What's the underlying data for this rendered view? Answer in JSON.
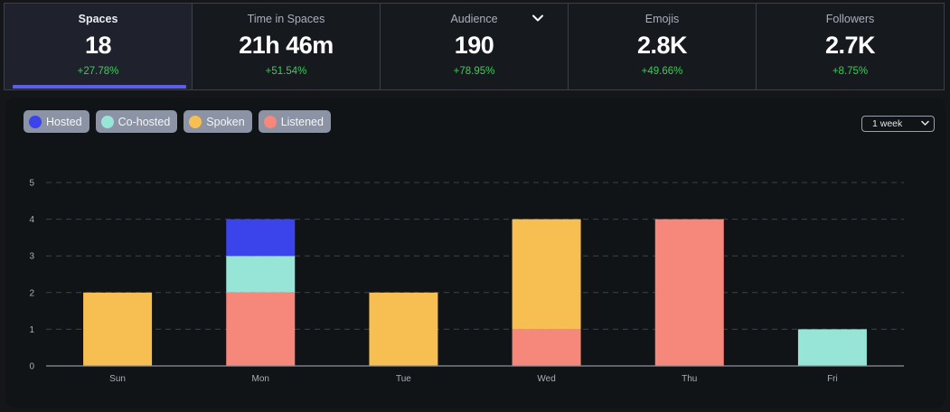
{
  "tabs": [
    {
      "label": "Spaces",
      "value": "18",
      "delta": "+27.78%",
      "active": true
    },
    {
      "label": "Time in Spaces",
      "value": "21h 46m",
      "delta": "+51.54%"
    },
    {
      "label": "Audience",
      "value": "190",
      "delta": "+78.95%",
      "dropdown": true
    },
    {
      "label": "Emojis",
      "value": "2.8K",
      "delta": "+49.66%"
    },
    {
      "label": "Followers",
      "value": "2.7K",
      "delta": "+8.75%"
    }
  ],
  "legend": [
    {
      "label": "Hosted",
      "color": "#3b43ea"
    },
    {
      "label": "Co-hosted",
      "color": "#97e5d7"
    },
    {
      "label": "Spoken",
      "color": "#f7bf52"
    },
    {
      "label": "Listened",
      "color": "#f5877b"
    }
  ],
  "range_select": {
    "value": "1 week"
  },
  "chart_data": {
    "type": "bar",
    "stacked": true,
    "categories": [
      "Sun",
      "Mon",
      "Tue",
      "Wed",
      "Thu",
      "Fri"
    ],
    "series": [
      {
        "name": "Listened",
        "color": "#f5877b",
        "values": [
          0,
          2,
          0,
          1,
          4,
          0
        ]
      },
      {
        "name": "Spoken",
        "color": "#f7bf52",
        "values": [
          2,
          0,
          2,
          3,
          0,
          0
        ]
      },
      {
        "name": "Co-hosted",
        "color": "#97e5d7",
        "values": [
          0,
          1,
          0,
          0,
          0,
          1
        ]
      },
      {
        "name": "Hosted",
        "color": "#3b43ea",
        "values": [
          0,
          1,
          0,
          0,
          0,
          0
        ]
      }
    ],
    "yticks": [
      0,
      1,
      2,
      3,
      4,
      5
    ],
    "ylim": [
      0,
      5
    ],
    "grid": true,
    "title": "",
    "xlabel": "",
    "ylabel": ""
  }
}
